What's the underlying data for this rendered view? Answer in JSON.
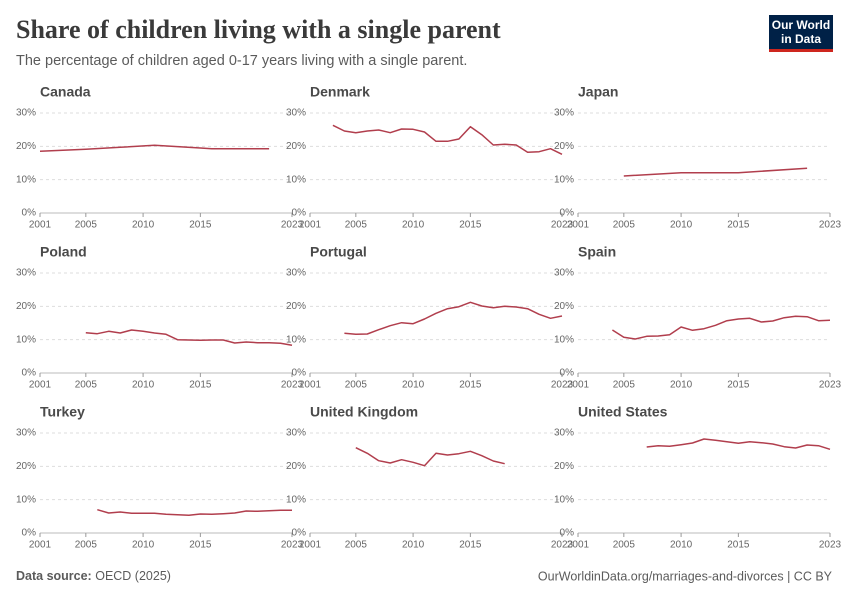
{
  "header": {
    "title": "Share of children living with a single parent",
    "subtitle": "The percentage of children aged 0-17 years living with a single parent.",
    "logo": [
      "Our World",
      "in Data"
    ]
  },
  "footer": {
    "source_label": "Data source:",
    "source": "OECD (2025)",
    "link": "OurWorldinData.org/marriages-and-divorces | CC BY"
  },
  "chart_data": [
    {
      "type": "line",
      "title": "Canada",
      "x": [
        2001,
        2005,
        2008,
        2011,
        2015,
        2016,
        2021
      ],
      "values": [
        18.5,
        19.1,
        19.7,
        20.3,
        19.5,
        19.3,
        19.3
      ],
      "color": "#b13e4d",
      "xlim": [
        2001,
        2023
      ],
      "xticks": [
        2001,
        2005,
        2010,
        2015,
        2023
      ],
      "ylim": [
        0,
        30
      ],
      "yticks": [
        {
          "value": 0,
          "label": "0%"
        },
        {
          "value": 10,
          "label": "10%"
        },
        {
          "value": 20,
          "label": "20%"
        },
        {
          "value": 30,
          "label": "30%"
        }
      ],
      "grid": true
    },
    {
      "type": "line",
      "title": "Denmark",
      "x": [
        2003,
        2004,
        2005,
        2006,
        2007,
        2008,
        2009,
        2010,
        2011,
        2012,
        2013,
        2014,
        2015,
        2016,
        2017,
        2018,
        2019,
        2020,
        2021,
        2022,
        2023
      ],
      "values": [
        26.3,
        24.6,
        24.1,
        24.6,
        24.9,
        24.1,
        25.2,
        25.1,
        24.3,
        21.5,
        21.5,
        22.2,
        25.9,
        23.5,
        20.4,
        20.6,
        20.4,
        18.2,
        18.4,
        19.3,
        17.6
      ],
      "color": "#b13e4d",
      "xlim": [
        2001,
        2023
      ],
      "xticks": [
        2001,
        2005,
        2010,
        2015,
        2023
      ],
      "ylim": [
        0,
        30
      ],
      "yticks": [
        {
          "value": 0,
          "label": "0%"
        },
        {
          "value": 10,
          "label": "10%"
        },
        {
          "value": 20,
          "label": "20%"
        },
        {
          "value": 30,
          "label": "30%"
        }
      ],
      "grid": true
    },
    {
      "type": "line",
      "title": "Japan",
      "x": [
        2005,
        2010,
        2015,
        2021
      ],
      "values": [
        11.1,
        12.1,
        12.1,
        13.4
      ],
      "color": "#b13e4d",
      "xlim": [
        2001,
        2023
      ],
      "xticks": [
        2001,
        2005,
        2010,
        2015,
        2023
      ],
      "ylim": [
        0,
        30
      ],
      "yticks": [
        {
          "value": 0,
          "label": "0%"
        },
        {
          "value": 10,
          "label": "10%"
        },
        {
          "value": 20,
          "label": "20%"
        },
        {
          "value": 30,
          "label": "30%"
        }
      ],
      "grid": true
    },
    {
      "type": "line",
      "title": "Poland",
      "x": [
        2005,
        2006,
        2007,
        2008,
        2009,
        2010,
        2011,
        2012,
        2013,
        2014,
        2015,
        2016,
        2017,
        2018,
        2019,
        2020,
        2021,
        2022,
        2023
      ],
      "values": [
        12.1,
        11.8,
        12.5,
        12.0,
        12.9,
        12.5,
        12.0,
        11.6,
        10.0,
        9.9,
        9.8,
        9.9,
        9.9,
        9.0,
        9.3,
        9.1,
        9.1,
        8.9,
        8.3
      ],
      "color": "#b13e4d",
      "xlim": [
        2001,
        2023
      ],
      "xticks": [
        2001,
        2005,
        2010,
        2015,
        2023
      ],
      "ylim": [
        0,
        30
      ],
      "yticks": [
        {
          "value": 0,
          "label": "0%"
        },
        {
          "value": 10,
          "label": "10%"
        },
        {
          "value": 20,
          "label": "20%"
        },
        {
          "value": 30,
          "label": "30%"
        }
      ],
      "grid": true
    },
    {
      "type": "line",
      "title": "Portugal",
      "x": [
        2004,
        2005,
        2006,
        2007,
        2008,
        2009,
        2010,
        2011,
        2012,
        2013,
        2014,
        2015,
        2016,
        2017,
        2018,
        2019,
        2020,
        2021,
        2022,
        2023
      ],
      "values": [
        11.9,
        11.6,
        11.7,
        13.0,
        14.2,
        15.1,
        14.8,
        16.2,
        17.9,
        19.3,
        19.9,
        21.2,
        20.1,
        19.6,
        20.0,
        19.8,
        19.3,
        17.6,
        16.4,
        17.1
      ],
      "color": "#b13e4d",
      "xlim": [
        2001,
        2023
      ],
      "xticks": [
        2001,
        2005,
        2010,
        2015,
        2023
      ],
      "ylim": [
        0,
        30
      ],
      "yticks": [
        {
          "value": 0,
          "label": "0%"
        },
        {
          "value": 10,
          "label": "10%"
        },
        {
          "value": 20,
          "label": "20%"
        },
        {
          "value": 30,
          "label": "30%"
        }
      ],
      "grid": true
    },
    {
      "type": "line",
      "title": "Spain",
      "x": [
        2004,
        2005,
        2006,
        2007,
        2008,
        2009,
        2010,
        2011,
        2012,
        2013,
        2014,
        2015,
        2016,
        2017,
        2018,
        2019,
        2020,
        2021,
        2022,
        2023
      ],
      "values": [
        12.9,
        10.7,
        10.2,
        11.0,
        11.1,
        11.5,
        13.8,
        12.8,
        13.3,
        14.3,
        15.7,
        16.2,
        16.4,
        15.3,
        15.6,
        16.6,
        17.0,
        16.9,
        15.7,
        15.8
      ],
      "color": "#b13e4d",
      "xlim": [
        2001,
        2023
      ],
      "xticks": [
        2001,
        2005,
        2010,
        2015,
        2023
      ],
      "ylim": [
        0,
        30
      ],
      "yticks": [
        {
          "value": 0,
          "label": "0%"
        },
        {
          "value": 10,
          "label": "10%"
        },
        {
          "value": 20,
          "label": "20%"
        },
        {
          "value": 30,
          "label": "30%"
        }
      ],
      "grid": true
    },
    {
      "type": "line",
      "title": "Turkey",
      "x": [
        2006,
        2007,
        2008,
        2009,
        2010,
        2011,
        2012,
        2013,
        2014,
        2015,
        2016,
        2017,
        2018,
        2019,
        2020,
        2021,
        2022,
        2023
      ],
      "values": [
        7.0,
        6.0,
        6.3,
        5.9,
        5.9,
        5.9,
        5.6,
        5.5,
        5.3,
        5.7,
        5.6,
        5.8,
        6.0,
        6.6,
        6.5,
        6.7,
        6.8,
        6.8
      ],
      "color": "#b13e4d",
      "xlim": [
        2001,
        2023
      ],
      "xticks": [
        2001,
        2005,
        2010,
        2015,
        2023
      ],
      "ylim": [
        0,
        30
      ],
      "yticks": [
        {
          "value": 0,
          "label": "0%"
        },
        {
          "value": 10,
          "label": "10%"
        },
        {
          "value": 20,
          "label": "20%"
        },
        {
          "value": 30,
          "label": "30%"
        }
      ],
      "grid": true
    },
    {
      "type": "line",
      "title": "United Kingdom",
      "x": [
        2005,
        2006,
        2007,
        2008,
        2009,
        2010,
        2011,
        2012,
        2013,
        2014,
        2015,
        2016,
        2017,
        2018
      ],
      "values": [
        25.6,
        23.9,
        21.7,
        21.0,
        22.0,
        21.2,
        20.2,
        23.9,
        23.4,
        23.8,
        24.5,
        23.2,
        21.6,
        20.8
      ],
      "color": "#b13e4d",
      "xlim": [
        2001,
        2023
      ],
      "xticks": [
        2001,
        2005,
        2010,
        2015,
        2023
      ],
      "ylim": [
        0,
        30
      ],
      "yticks": [
        {
          "value": 0,
          "label": "0%"
        },
        {
          "value": 10,
          "label": "10%"
        },
        {
          "value": 20,
          "label": "20%"
        },
        {
          "value": 30,
          "label": "30%"
        }
      ],
      "grid": true
    },
    {
      "type": "line",
      "title": "United States",
      "x": [
        2007,
        2008,
        2009,
        2010,
        2011,
        2012,
        2013,
        2014,
        2015,
        2016,
        2017,
        2018,
        2019,
        2020,
        2021,
        2022,
        2023
      ],
      "values": [
        25.8,
        26.2,
        26.0,
        26.5,
        27.0,
        28.2,
        27.8,
        27.4,
        26.9,
        27.4,
        27.1,
        26.7,
        25.9,
        25.5,
        26.4,
        26.2,
        25.1
      ],
      "color": "#b13e4d",
      "xlim": [
        2001,
        2023
      ],
      "xticks": [
        2001,
        2005,
        2010,
        2015,
        2023
      ],
      "ylim": [
        0,
        30
      ],
      "yticks": [
        {
          "value": 0,
          "label": "0%"
        },
        {
          "value": 10,
          "label": "10%"
        },
        {
          "value": 20,
          "label": "20%"
        },
        {
          "value": 30,
          "label": "30%"
        }
      ],
      "grid": true
    }
  ]
}
